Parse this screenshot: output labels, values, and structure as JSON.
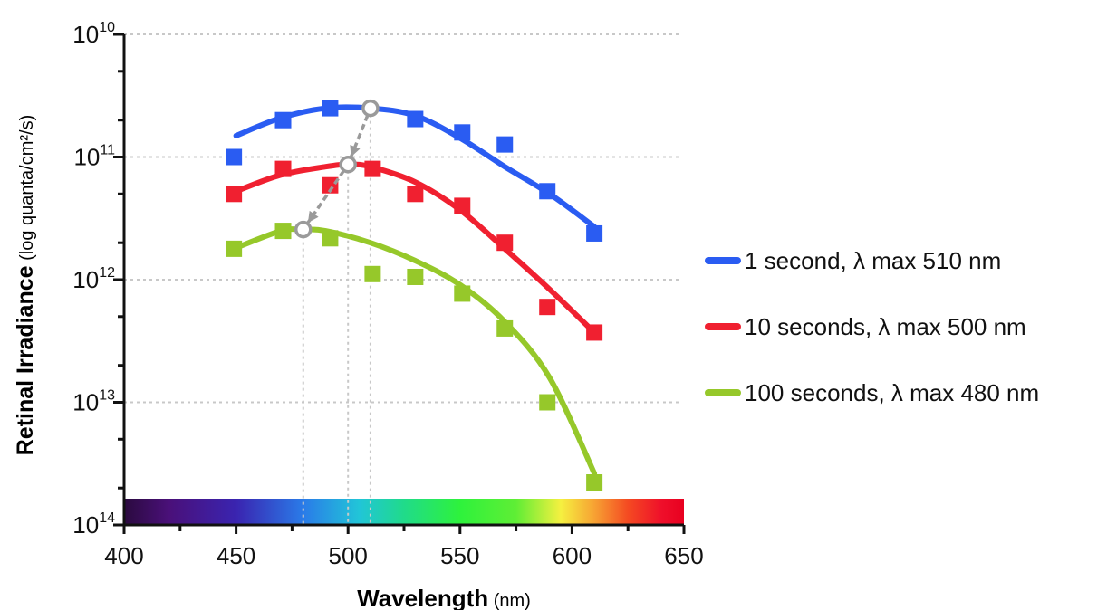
{
  "chart_data": {
    "type": "scatter",
    "x_axis": {
      "label_bold": "Wavelength",
      "label_unit": "(nm)",
      "ticks": [
        400,
        450,
        500,
        550,
        600,
        650
      ],
      "range": [
        400,
        650
      ]
    },
    "y_axis": {
      "label_bold": "Retinal Irradiance",
      "label_unit": "(log quanta/cm²/s)",
      "scale": "log",
      "direction": "inverted",
      "tick_labels": [
        {
          "base": "10",
          "exp": "10",
          "value": 10000000000.0
        },
        {
          "base": "10",
          "exp": "11",
          "value": 100000000000.0
        },
        {
          "base": "10",
          "exp": "12",
          "value": 1000000000000.0
        },
        {
          "base": "10",
          "exp": "13",
          "value": 10000000000000.0
        },
        {
          "base": "10",
          "exp": "14",
          "value": 100000000000000.0
        }
      ],
      "range": [
        10000000000.0,
        100000000000000.0
      ]
    },
    "grid": "dotted horizontal at decades",
    "legend_position": "right",
    "spectrum_bar": true,
    "series": [
      {
        "name": "1 second, λ max  510 nm",
        "color": "#2a5cf2",
        "lambda_max": 510,
        "points": [
          [
            449,
            100000000000.0
          ],
          [
            471,
            50000000000.0
          ],
          [
            492,
            40000000000.0
          ],
          [
            530,
            49000000000.0
          ],
          [
            551,
            63000000000.0
          ],
          [
            570,
            79000000000.0
          ],
          [
            589,
            190000000000.0
          ],
          [
            610,
            420000000000.0
          ]
        ],
        "fit": [
          [
            450,
            67000000000.0
          ],
          [
            470,
            48000000000.0
          ],
          [
            490,
            40000000000.0
          ],
          [
            510,
            40000000000.0
          ],
          [
            530,
            46000000000.0
          ],
          [
            550,
            70000000000.0
          ],
          [
            570,
            120000000000.0
          ],
          [
            590,
            200000000000.0
          ],
          [
            610,
            370000000000.0
          ]
        ]
      },
      {
        "name": "10 seconds, λ max  500 nm",
        "color": "#f02030",
        "lambda_max": 500,
        "points": [
          [
            449,
            200000000000.0
          ],
          [
            471,
            125000000000.0
          ],
          [
            492,
            170000000000.0
          ],
          [
            511,
            125000000000.0
          ],
          [
            530,
            200000000000.0
          ],
          [
            551,
            250000000000.0
          ],
          [
            570,
            500000000000.0
          ],
          [
            589,
            1670000000000.0
          ],
          [
            610,
            2700000000000.0
          ]
        ],
        "fit": [
          [
            450,
            190000000000.0
          ],
          [
            470,
            140000000000.0
          ],
          [
            490,
            120000000000.0
          ],
          [
            500,
            115000000000.0
          ],
          [
            510,
            120000000000.0
          ],
          [
            530,
            160000000000.0
          ],
          [
            550,
            270000000000.0
          ],
          [
            570,
            560000000000.0
          ],
          [
            590,
            1200000000000.0
          ],
          [
            610,
            2700000000000.0
          ]
        ]
      },
      {
        "name": "100 seconds, λ max  480 nm",
        "color": "#96c82a",
        "lambda_max": 480,
        "points": [
          [
            449,
            560000000000.0
          ],
          [
            471,
            400000000000.0
          ],
          [
            492,
            460000000000.0
          ],
          [
            511,
            900000000000.0
          ],
          [
            530,
            950000000000.0
          ],
          [
            551,
            1300000000000.0
          ],
          [
            570,
            2500000000000.0
          ],
          [
            589,
            10000000000000.0
          ],
          [
            610,
            45000000000000.0
          ]
        ],
        "fit": [
          [
            450,
            550000000000.0
          ],
          [
            470,
            400000000000.0
          ],
          [
            480,
            390000000000.0
          ],
          [
            490,
            400000000000.0
          ],
          [
            510,
            500000000000.0
          ],
          [
            530,
            700000000000.0
          ],
          [
            550,
            1100000000000.0
          ],
          [
            570,
            2200000000000.0
          ],
          [
            590,
            6300000000000.0
          ],
          [
            610,
            38000000000000.0
          ]
        ]
      }
    ],
    "shift_markers": {
      "color": "#9a9a9a",
      "points": [
        [
          510,
          40000000000.0
        ],
        [
          500,
          115000000000.0
        ],
        [
          480,
          390000000000.0
        ]
      ]
    }
  }
}
